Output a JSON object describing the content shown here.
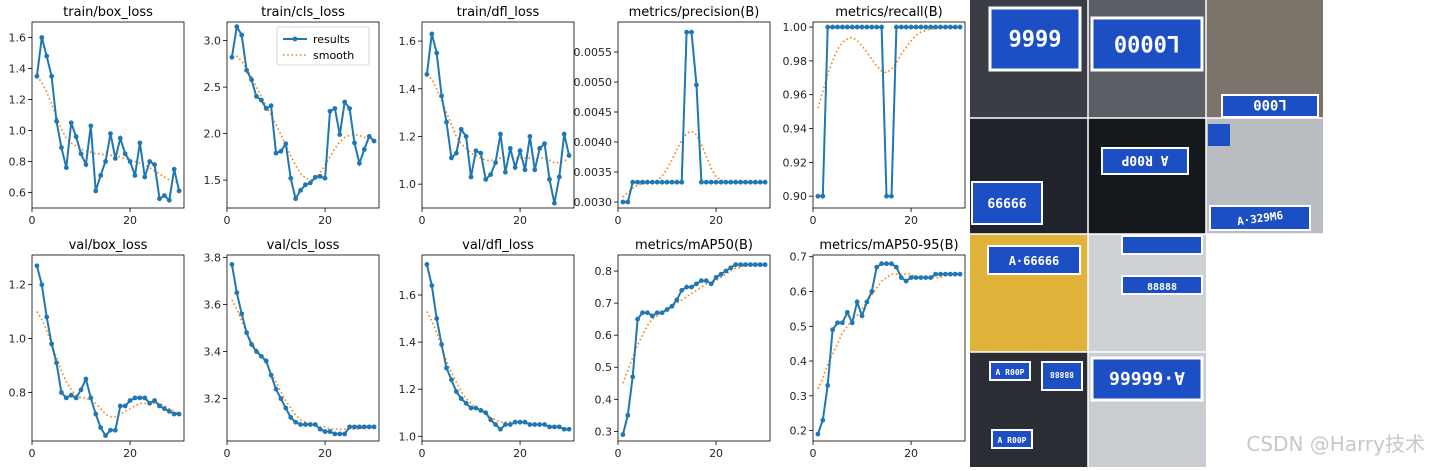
{
  "chart_data": [
    {
      "type": "line",
      "title": "train/box_loss",
      "xlim": [
        0,
        31
      ],
      "ylim": [
        0.5,
        1.7
      ],
      "xticks": [
        0,
        20
      ],
      "yticks": [
        "0.6",
        "0.8",
        "1.0",
        "1.2",
        "1.4",
        "1.6"
      ],
      "series": [
        {
          "name": "results",
          "values": [
            1.35,
            1.6,
            1.48,
            1.35,
            1.06,
            0.89,
            0.76,
            1.05,
            0.96,
            0.85,
            0.78,
            1.03,
            0.61,
            0.71,
            0.8,
            0.98,
            0.82,
            0.95,
            0.85,
            0.8,
            0.71,
            0.92,
            0.7,
            0.8,
            0.78,
            0.56,
            0.58,
            0.55,
            0.75,
            0.61
          ]
        },
        {
          "name": "smooth",
          "values": [
            1.35,
            1.31,
            1.25,
            1.17,
            1.09,
            1.01,
            0.95,
            0.92,
            0.9,
            0.88,
            0.87,
            0.86,
            0.85,
            0.85,
            0.84,
            0.84,
            0.84,
            0.83,
            0.82,
            0.81,
            0.8,
            0.79,
            0.78,
            0.76,
            0.74,
            0.72,
            0.7,
            0.68,
            0.67,
            0.66
          ]
        }
      ]
    },
    {
      "type": "line",
      "title": "train/cls_loss",
      "xlim": [
        0,
        31
      ],
      "ylim": [
        1.2,
        3.2
      ],
      "xticks": [
        0,
        20
      ],
      "yticks": [
        "1.5",
        "2.0",
        "2.5",
        "3.0"
      ],
      "series": [
        {
          "name": "results",
          "values": [
            2.82,
            3.15,
            3.06,
            2.68,
            2.58,
            2.4,
            2.36,
            2.27,
            2.3,
            1.79,
            1.81,
            1.89,
            1.52,
            1.3,
            1.39,
            1.45,
            1.47,
            1.53,
            1.54,
            1.52,
            2.24,
            2.27,
            1.99,
            2.34,
            2.27,
            1.9,
            1.68,
            1.83,
            1.97,
            1.92
          ]
        },
        {
          "name": "smooth",
          "values": [
            2.82,
            2.83,
            2.78,
            2.7,
            2.61,
            2.5,
            2.4,
            2.3,
            2.2,
            2.1,
            1.99,
            1.88,
            1.76,
            1.66,
            1.57,
            1.52,
            1.5,
            1.52,
            1.58,
            1.66,
            1.75,
            1.84,
            1.91,
            1.96,
            1.98,
            1.99,
            1.98,
            1.96,
            1.94,
            1.92
          ]
        }
      ]
    },
    {
      "type": "line",
      "title": "train/dfl_loss",
      "xlim": [
        0,
        31
      ],
      "ylim": [
        0.9,
        1.68
      ],
      "xticks": [
        0,
        20
      ],
      "yticks": [
        "1.0",
        "1.2",
        "1.4",
        "1.6"
      ],
      "series": [
        {
          "name": "results",
          "values": [
            1.46,
            1.63,
            1.55,
            1.37,
            1.26,
            1.11,
            1.13,
            1.23,
            1.2,
            1.03,
            1.14,
            1.13,
            1.02,
            1.04,
            1.09,
            1.21,
            1.05,
            1.15,
            1.07,
            1.14,
            1.06,
            1.2,
            1.06,
            1.15,
            1.17,
            1.02,
            0.92,
            1.03,
            1.21,
            1.12
          ]
        },
        {
          "name": "smooth",
          "values": [
            1.46,
            1.44,
            1.4,
            1.35,
            1.3,
            1.25,
            1.2,
            1.17,
            1.15,
            1.13,
            1.12,
            1.11,
            1.1,
            1.1,
            1.1,
            1.11,
            1.11,
            1.11,
            1.11,
            1.11,
            1.11,
            1.11,
            1.11,
            1.11,
            1.11,
            1.1,
            1.09,
            1.09,
            1.1,
            1.1
          ]
        }
      ]
    },
    {
      "type": "line",
      "title": "metrics/precision(B)",
      "xlim": [
        0,
        31
      ],
      "ylim": [
        0.0029,
        0.006
      ],
      "xticks": [
        0,
        20
      ],
      "yticks": [
        "0.0030",
        "0.0035",
        "0.0040",
        "0.0045",
        "0.0050",
        "0.0055"
      ],
      "series": [
        {
          "name": "results",
          "values": [
            0.003,
            0.003,
            0.00333,
            0.00333,
            0.00333,
            0.00333,
            0.00333,
            0.00333,
            0.00333,
            0.00333,
            0.00333,
            0.00333,
            0.00333,
            0.00583,
            0.00583,
            0.00495,
            0.00333,
            0.00333,
            0.00333,
            0.00333,
            0.00333,
            0.00333,
            0.00333,
            0.00333,
            0.00333,
            0.00333,
            0.00333,
            0.00333,
            0.00333,
            0.00333
          ]
        },
        {
          "name": "smooth",
          "values": [
            0.00308,
            0.00316,
            0.00323,
            0.00328,
            0.0033,
            0.00332,
            0.00333,
            0.00336,
            0.00343,
            0.00355,
            0.0037,
            0.00387,
            0.00403,
            0.00414,
            0.00418,
            0.00412,
            0.00396,
            0.00376,
            0.00356,
            0.00342,
            0.00336,
            0.00334,
            0.00333,
            0.00333,
            0.00333,
            0.00333,
            0.00333,
            0.00333,
            0.00333,
            0.00333
          ]
        }
      ]
    },
    {
      "type": "line",
      "title": "metrics/recall(B)",
      "xlim": [
        0,
        31
      ],
      "ylim": [
        0.893,
        1.003
      ],
      "xticks": [
        0,
        20
      ],
      "yticks": [
        "0.90",
        "0.92",
        "0.94",
        "0.96",
        "0.98",
        "1.00"
      ],
      "series": [
        {
          "name": "results",
          "values": [
            0.9,
            0.9,
            1.0,
            1.0,
            1.0,
            1.0,
            1.0,
            1.0,
            1.0,
            1.0,
            1.0,
            1.0,
            1.0,
            1.0,
            0.9,
            0.9,
            1.0,
            1.0,
            1.0,
            1.0,
            1.0,
            1.0,
            1.0,
            1.0,
            1.0,
            1.0,
            1.0,
            1.0,
            1.0,
            1.0
          ]
        },
        {
          "name": "smooth",
          "values": [
            0.952,
            0.962,
            0.972,
            0.98,
            0.987,
            0.991,
            0.993,
            0.994,
            0.992,
            0.989,
            0.985,
            0.981,
            0.977,
            0.974,
            0.973,
            0.975,
            0.979,
            0.984,
            0.988,
            0.992,
            0.995,
            0.997,
            0.998,
            0.999,
            0.999,
            1.0,
            1.0,
            1.0,
            1.0,
            1.0
          ]
        }
      ]
    },
    {
      "type": "line",
      "title": "val/box_loss",
      "xlim": [
        0,
        31
      ],
      "ylim": [
        0.62,
        1.31
      ],
      "xticks": [
        0,
        20
      ],
      "yticks": [
        "0.8",
        "1.0",
        "1.2"
      ],
      "series": [
        {
          "name": "results",
          "values": [
            1.27,
            1.2,
            1.08,
            0.98,
            0.91,
            0.8,
            0.78,
            0.79,
            0.78,
            0.81,
            0.85,
            0.78,
            0.72,
            0.67,
            0.64,
            0.66,
            0.66,
            0.75,
            0.75,
            0.77,
            0.78,
            0.78,
            0.78,
            0.76,
            0.77,
            0.75,
            0.74,
            0.73,
            0.72,
            0.72
          ]
        },
        {
          "name": "smooth",
          "values": [
            1.1,
            1.07,
            1.03,
            0.98,
            0.93,
            0.88,
            0.84,
            0.81,
            0.79,
            0.78,
            0.78,
            0.77,
            0.76,
            0.74,
            0.72,
            0.71,
            0.71,
            0.72,
            0.73,
            0.74,
            0.75,
            0.76,
            0.76,
            0.76,
            0.76,
            0.76,
            0.75,
            0.74,
            0.73,
            0.72
          ]
        }
      ]
    },
    {
      "type": "line",
      "title": "val/cls_loss",
      "xlim": [
        0,
        31
      ],
      "ylim": [
        3.02,
        3.81
      ],
      "xticks": [
        0,
        20
      ],
      "yticks": [
        "3.2",
        "3.4",
        "3.6",
        "3.8"
      ],
      "series": [
        {
          "name": "results",
          "values": [
            3.77,
            3.65,
            3.56,
            3.48,
            3.43,
            3.4,
            3.38,
            3.36,
            3.3,
            3.24,
            3.2,
            3.16,
            3.12,
            3.1,
            3.09,
            3.09,
            3.09,
            3.09,
            3.07,
            3.06,
            3.06,
            3.05,
            3.05,
            3.05,
            3.08,
            3.08,
            3.08,
            3.08,
            3.08,
            3.08
          ]
        },
        {
          "name": "smooth",
          "values": [
            3.62,
            3.58,
            3.53,
            3.48,
            3.44,
            3.41,
            3.38,
            3.35,
            3.31,
            3.27,
            3.23,
            3.19,
            3.16,
            3.13,
            3.11,
            3.1,
            3.09,
            3.09,
            3.08,
            3.08,
            3.07,
            3.07,
            3.07,
            3.07,
            3.07,
            3.07,
            3.07,
            3.08,
            3.08,
            3.08
          ]
        }
      ]
    },
    {
      "type": "line",
      "title": "val/dfl_loss",
      "xlim": [
        0,
        31
      ],
      "ylim": [
        0.98,
        1.77
      ],
      "xticks": [
        0,
        20
      ],
      "yticks": [
        "1.0",
        "1.2",
        "1.4",
        "1.6"
      ],
      "series": [
        {
          "name": "results",
          "values": [
            1.73,
            1.64,
            1.5,
            1.39,
            1.29,
            1.24,
            1.19,
            1.16,
            1.14,
            1.12,
            1.12,
            1.11,
            1.1,
            1.07,
            1.05,
            1.03,
            1.05,
            1.05,
            1.06,
            1.06,
            1.06,
            1.05,
            1.05,
            1.05,
            1.05,
            1.04,
            1.04,
            1.04,
            1.03,
            1.03
          ]
        },
        {
          "name": "smooth",
          "values": [
            1.53,
            1.49,
            1.44,
            1.38,
            1.32,
            1.27,
            1.23,
            1.19,
            1.16,
            1.14,
            1.12,
            1.11,
            1.1,
            1.08,
            1.07,
            1.06,
            1.06,
            1.06,
            1.06,
            1.06,
            1.06,
            1.05,
            1.05,
            1.05,
            1.05,
            1.04,
            1.04,
            1.04,
            1.03,
            1.03
          ]
        }
      ]
    },
    {
      "type": "line",
      "title": "metrics/mAP50(B)",
      "xlim": [
        0,
        31
      ],
      "ylim": [
        0.27,
        0.85
      ],
      "xticks": [
        0,
        20
      ],
      "yticks": [
        "0.3",
        "0.4",
        "0.5",
        "0.6",
        "0.7",
        "0.8"
      ],
      "series": [
        {
          "name": "results",
          "values": [
            0.29,
            0.35,
            0.47,
            0.65,
            0.67,
            0.67,
            0.66,
            0.67,
            0.67,
            0.68,
            0.69,
            0.71,
            0.74,
            0.75,
            0.75,
            0.76,
            0.77,
            0.77,
            0.76,
            0.78,
            0.79,
            0.8,
            0.81,
            0.82,
            0.82,
            0.82,
            0.82,
            0.82,
            0.82,
            0.82
          ]
        },
        {
          "name": "smooth",
          "values": [
            0.45,
            0.49,
            0.53,
            0.57,
            0.6,
            0.63,
            0.65,
            0.66,
            0.67,
            0.68,
            0.69,
            0.7,
            0.71,
            0.72,
            0.73,
            0.74,
            0.75,
            0.76,
            0.76,
            0.77,
            0.78,
            0.79,
            0.8,
            0.81,
            0.81,
            0.82,
            0.82,
            0.82,
            0.82,
            0.82
          ]
        }
      ]
    },
    {
      "type": "line",
      "title": "metrics/mAP50-95(B)",
      "xlim": [
        0,
        31
      ],
      "ylim": [
        0.17,
        0.705
      ],
      "xticks": [
        0,
        20
      ],
      "yticks": [
        "0.2",
        "0.3",
        "0.4",
        "0.5",
        "0.6",
        "0.7"
      ],
      "series": [
        {
          "name": "results",
          "values": [
            0.19,
            0.23,
            0.33,
            0.49,
            0.51,
            0.51,
            0.54,
            0.51,
            0.57,
            0.53,
            0.57,
            0.6,
            0.67,
            0.68,
            0.68,
            0.68,
            0.67,
            0.64,
            0.63,
            0.64,
            0.64,
            0.64,
            0.64,
            0.64,
            0.65,
            0.65,
            0.65,
            0.65,
            0.65,
            0.65
          ]
        },
        {
          "name": "smooth",
          "values": [
            0.32,
            0.35,
            0.39,
            0.42,
            0.45,
            0.48,
            0.5,
            0.52,
            0.53,
            0.55,
            0.57,
            0.59,
            0.61,
            0.63,
            0.64,
            0.65,
            0.65,
            0.65,
            0.65,
            0.65,
            0.64,
            0.64,
            0.64,
            0.64,
            0.64,
            0.64,
            0.65,
            0.65,
            0.65,
            0.65
          ]
        }
      ]
    }
  ],
  "legend": {
    "results": "results",
    "smooth": "smooth"
  },
  "colors": {
    "results": "#1f77b4",
    "smooth": "#ff7f0e"
  },
  "mosaic": {
    "plates": [
      "6666",
      "L0000",
      "L000",
      "66666",
      "A·66666",
      "A R00P",
      "A R00P",
      "A R00P",
      "A·66666",
      "88888",
      "88888",
      "A·329M6"
    ]
  },
  "watermark": "CSDN @Harry技术"
}
